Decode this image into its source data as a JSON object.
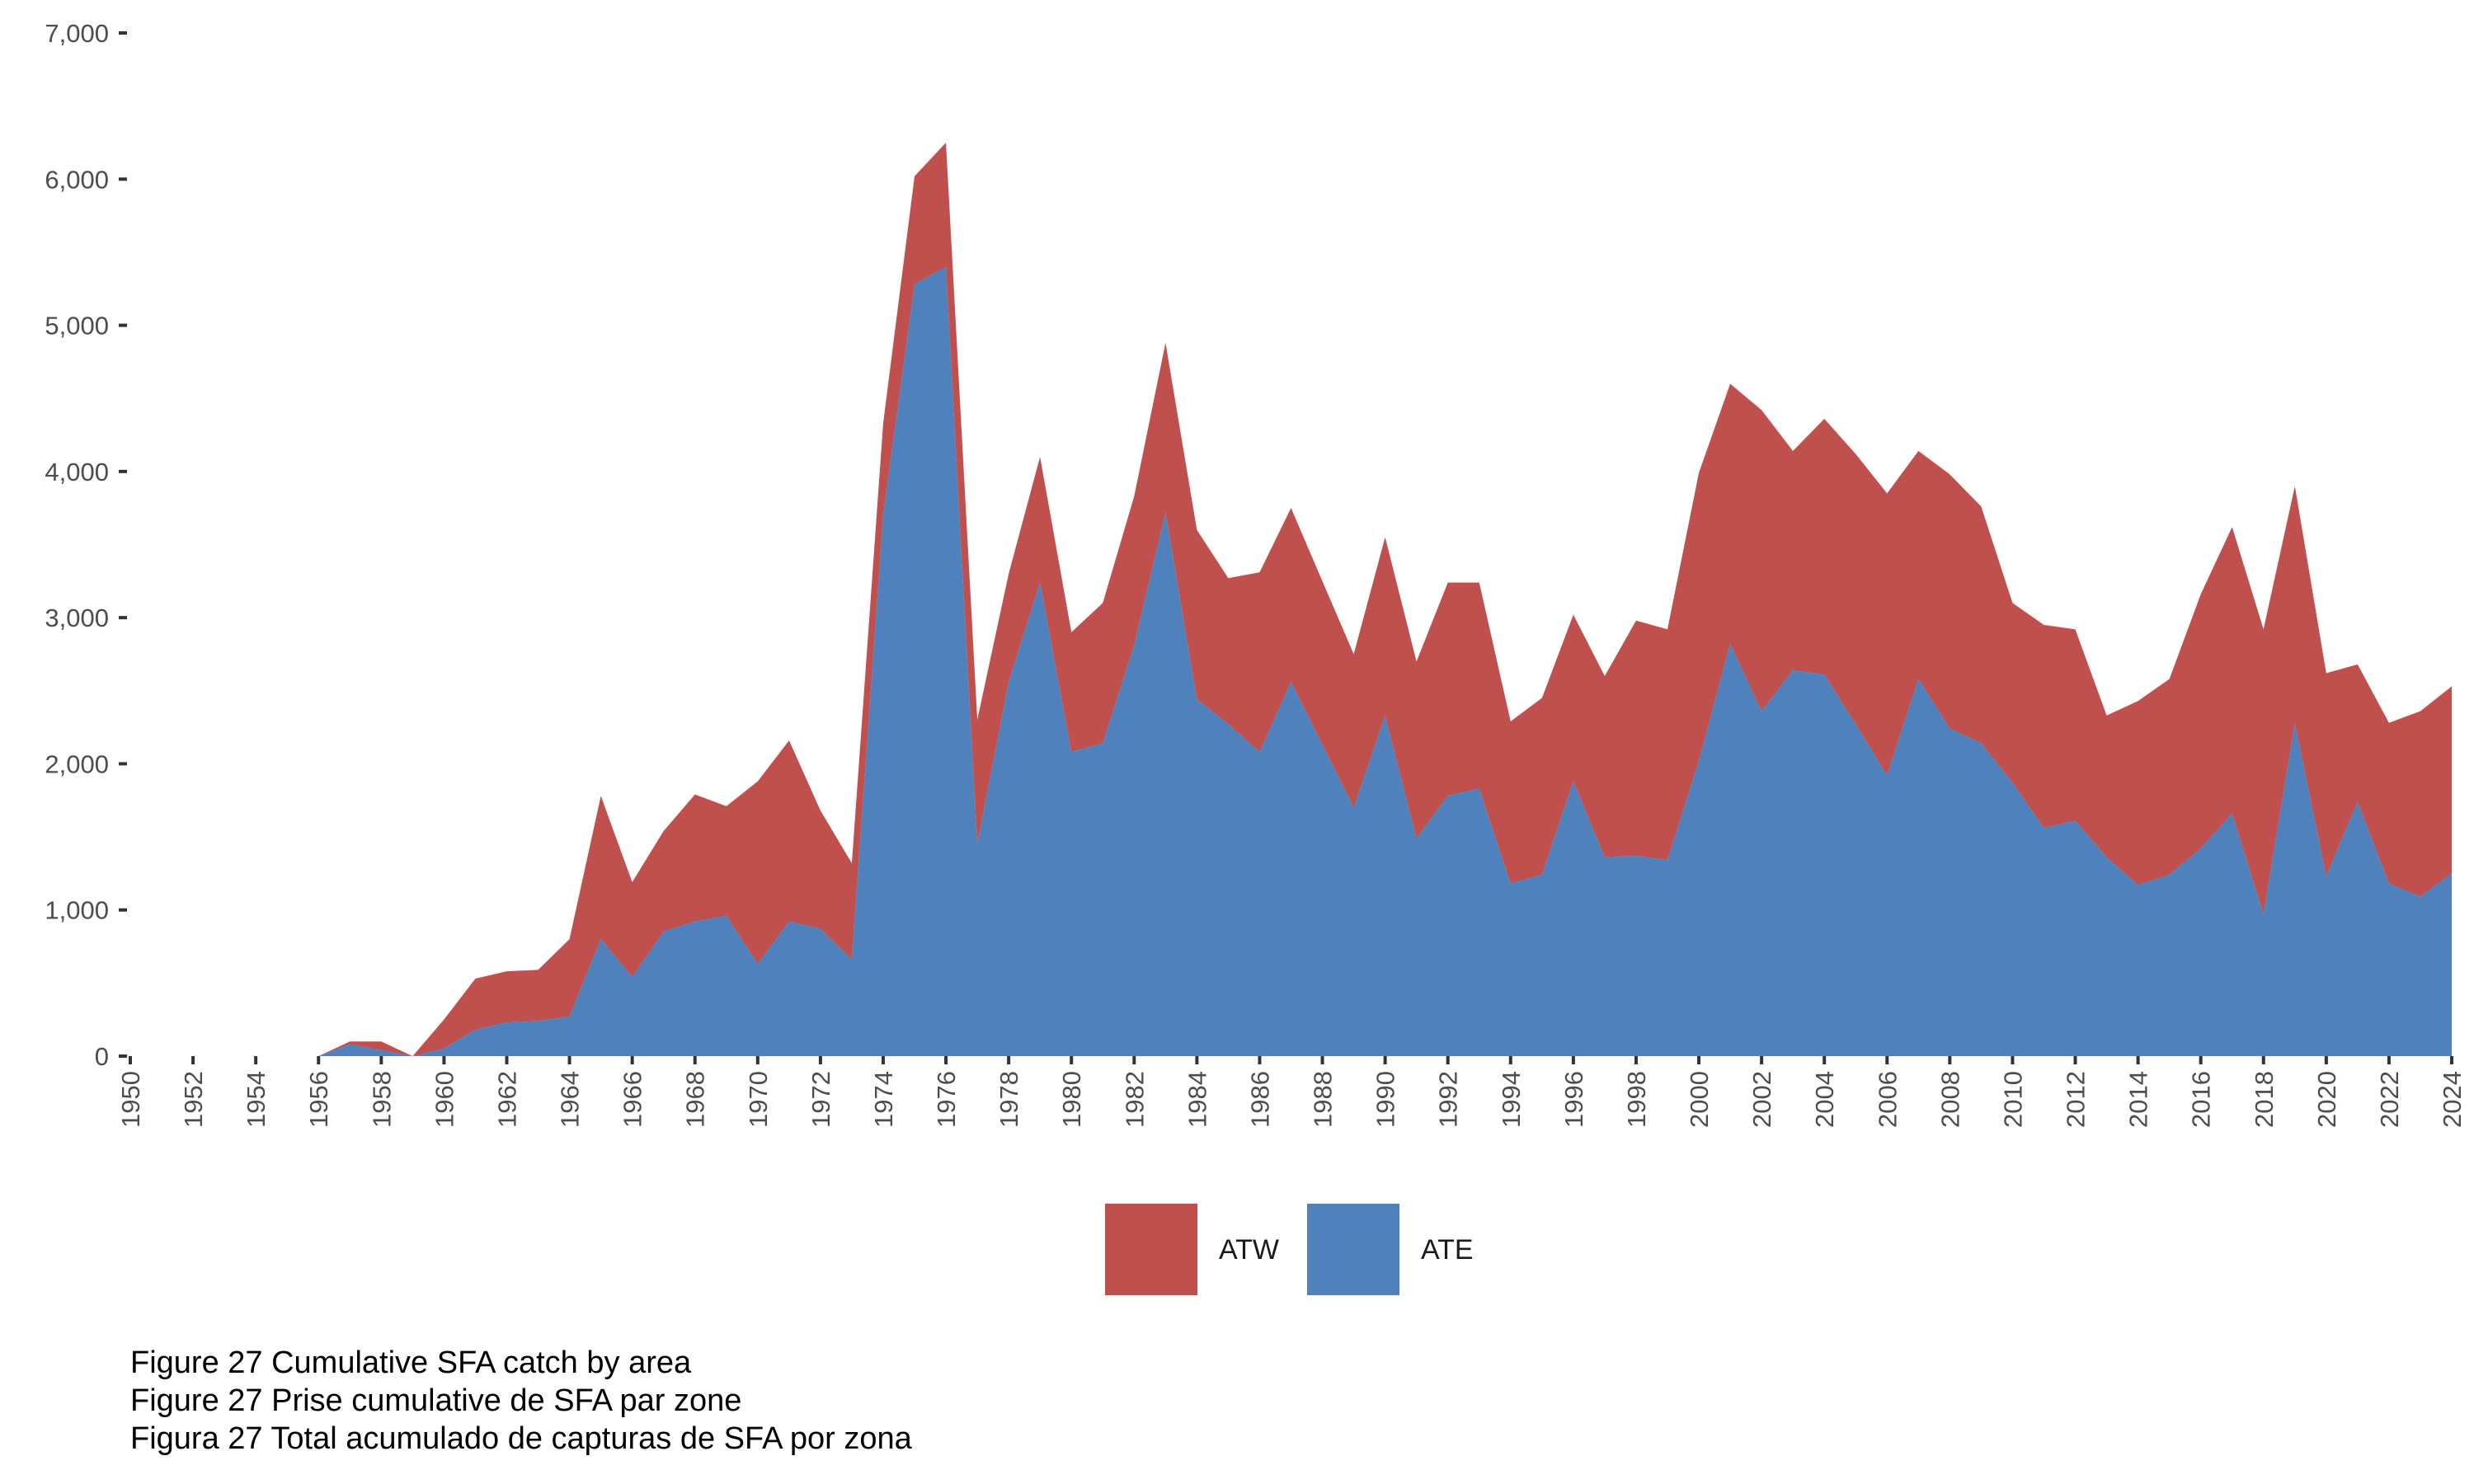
{
  "chart_data": {
    "type": "area",
    "stacked": true,
    "title": "",
    "xlabel": "",
    "ylabel": "",
    "x": [
      1950,
      1951,
      1952,
      1953,
      1954,
      1955,
      1956,
      1957,
      1958,
      1959,
      1960,
      1961,
      1962,
      1963,
      1964,
      1965,
      1966,
      1967,
      1968,
      1969,
      1970,
      1971,
      1972,
      1973,
      1974,
      1975,
      1976,
      1977,
      1978,
      1979,
      1980,
      1981,
      1982,
      1983,
      1984,
      1985,
      1986,
      1987,
      1988,
      1989,
      1990,
      1991,
      1992,
      1993,
      1994,
      1995,
      1996,
      1997,
      1998,
      1999,
      2000,
      2001,
      2002,
      2003,
      2004,
      2005,
      2006,
      2007,
      2008,
      2009,
      2010,
      2011,
      2012,
      2013,
      2014,
      2015,
      2016,
      2017,
      2018,
      2019,
      2020,
      2021,
      2022,
      2023,
      2024
    ],
    "series": [
      {
        "name": "ATE",
        "color": "#4f81bd",
        "values": [
          0,
          0,
          0,
          0,
          0,
          0,
          0,
          80,
          40,
          0,
          50,
          180,
          230,
          240,
          270,
          800,
          540,
          850,
          920,
          960,
          630,
          920,
          870,
          660,
          3700,
          5280,
          5400,
          1450,
          2560,
          3240,
          2080,
          2140,
          2810,
          3720,
          2440,
          2270,
          2080,
          2560,
          2130,
          1700,
          2330,
          1490,
          1780,
          1830,
          1180,
          1240,
          1880,
          1360,
          1370,
          1340,
          2020,
          2820,
          2360,
          2640,
          2610,
          2270,
          1920,
          2580,
          2240,
          2140,
          1870,
          1560,
          1610,
          1360,
          1170,
          1240,
          1420,
          1660,
          970,
          2280,
          1230,
          1740,
          1180,
          1090,
          1250
        ]
      },
      {
        "name": "ATW",
        "color": "#c0504d",
        "values": [
          0,
          0,
          0,
          0,
          0,
          0,
          0,
          20,
          60,
          0,
          200,
          350,
          350,
          350,
          530,
          980,
          650,
          690,
          870,
          750,
          1250,
          1240,
          810,
          660,
          630,
          740,
          850,
          850,
          740,
          860,
          820,
          960,
          1020,
          1160,
          1160,
          1000,
          1230,
          1190,
          1120,
          1050,
          1220,
          1210,
          1460,
          1410,
          1110,
          1210,
          1140,
          1240,
          1610,
          1580,
          1970,
          1780,
          2060,
          1500,
          1750,
          1850,
          1930,
          1560,
          1740,
          1620,
          1230,
          1390,
          1310,
          970,
          1260,
          1340,
          1740,
          1960,
          1950,
          1620,
          1390,
          940,
          1100,
          1270,
          1280
        ]
      }
    ],
    "legend": [
      "ATW",
      "ATE"
    ],
    "legend_position": "bottom",
    "ylim": [
      0,
      7000
    ],
    "yticks": [
      "0",
      "1,000",
      "2,000",
      "3,000",
      "4,000",
      "5,000",
      "6,000",
      "7,000"
    ],
    "ytick_values": [
      0,
      1000,
      2000,
      3000,
      4000,
      5000,
      6000,
      7000
    ],
    "xlim": [
      1950,
      2024
    ],
    "xticks": [
      "1950",
      "1952",
      "1954",
      "1956",
      "1958",
      "1960",
      "1962",
      "1964",
      "1966",
      "1968",
      "1970",
      "1972",
      "1974",
      "1976",
      "1978",
      "1980",
      "1982",
      "1984",
      "1986",
      "1988",
      "1990",
      "1992",
      "1994",
      "1996",
      "1998",
      "2000",
      "2002",
      "2004",
      "2006",
      "2008",
      "2010",
      "2012",
      "2014",
      "2016",
      "2018",
      "2020",
      "2022",
      "2024"
    ],
    "grid": false
  },
  "caption": {
    "line1": "Figure 27 Cumulative SFA catch by area",
    "line2": "Figure 27 Prise cumulative de SFA par zone",
    "line3": "Figura 27 Total acumulado de capturas de SFA por zona"
  }
}
